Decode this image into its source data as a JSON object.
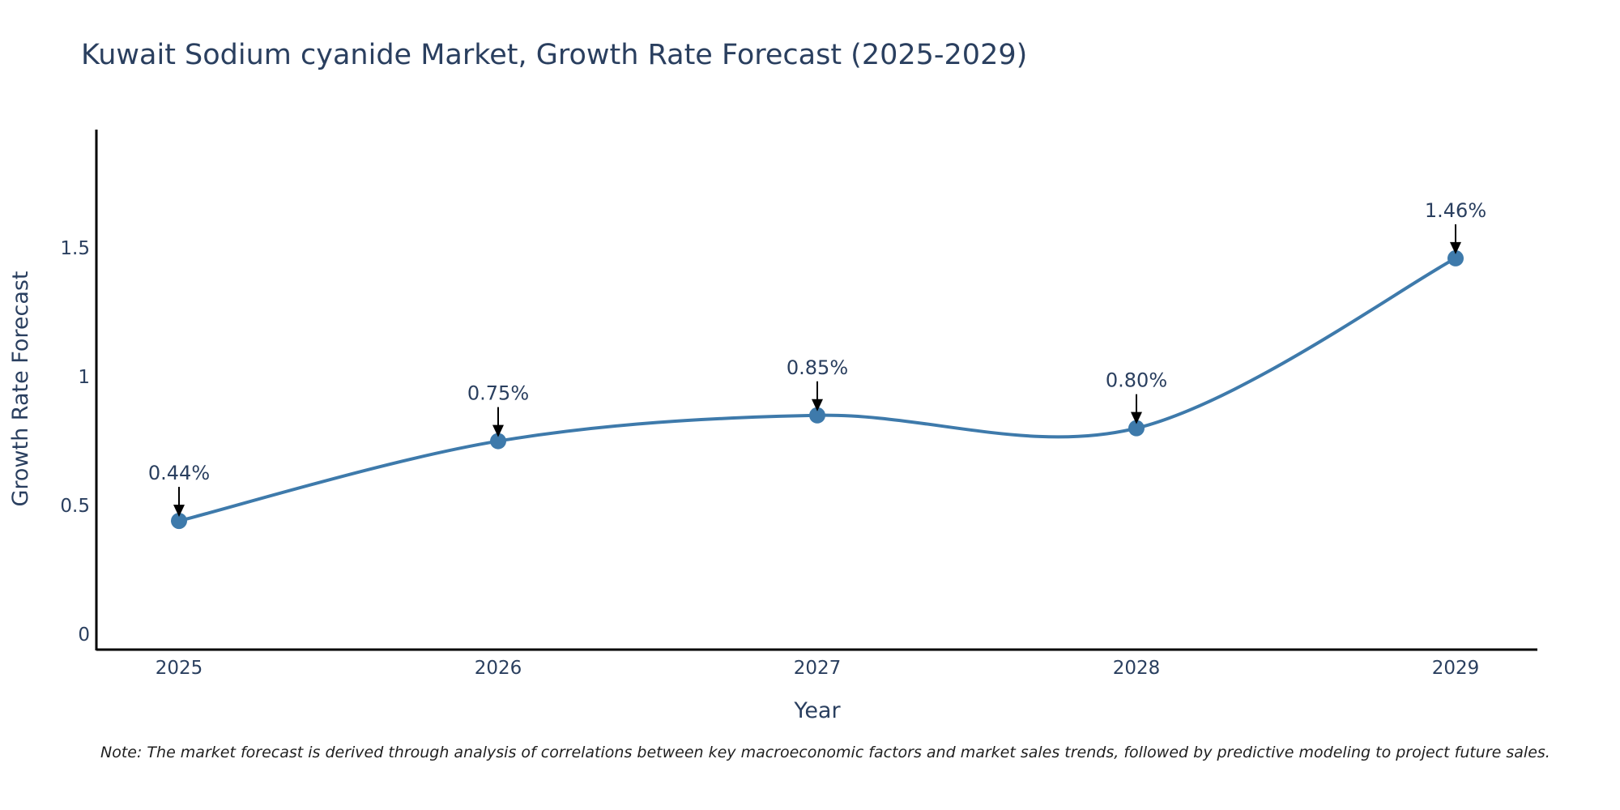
{
  "chart_data": {
    "type": "line",
    "title": "Kuwait Sodium cyanide Market, Growth Rate Forecast (2025-2029)",
    "xlabel": "Year",
    "ylabel": "Growth Rate Forecast",
    "categories": [
      "2025",
      "2026",
      "2027",
      "2028",
      "2029"
    ],
    "values": [
      0.44,
      0.75,
      0.85,
      0.8,
      1.46
    ],
    "data_labels": [
      "0.44%",
      "0.75%",
      "0.85%",
      "0.80%",
      "1.46%"
    ],
    "ylim": [
      -0.06,
      1.96
    ],
    "y_ticks": [
      0,
      0.5,
      1,
      1.5
    ],
    "y_tick_labels": [
      "0",
      "0.5",
      "1",
      "1.5"
    ],
    "grid": false,
    "series": [
      {
        "name": "Growth Rate Forecast",
        "values": [
          0.44,
          0.75,
          0.85,
          0.8,
          1.46
        ]
      }
    ],
    "line_color": "#3e7aab",
    "marker_color": "#3e7aab"
  },
  "note": "Note: The market forecast is derived through analysis of correlations between key macroeconomic factors and market sales trends, followed by predictive modeling to project future sales."
}
